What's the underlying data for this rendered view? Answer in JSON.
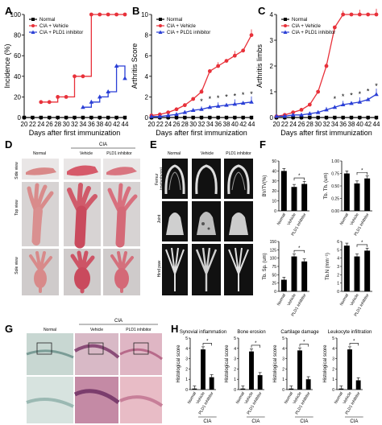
{
  "panel_labels": {
    "A": "A",
    "B": "B",
    "C": "C",
    "D": "D",
    "E": "E",
    "F": "F",
    "G": "G",
    "H": "H"
  },
  "line_charts": [
    {
      "type": "line",
      "id": "A",
      "ylabel": "Incidence (%)",
      "xlabel": "Days after first immunization",
      "ylim": [
        0,
        100
      ],
      "yticks": [
        0,
        20,
        40,
        60,
        80,
        100
      ],
      "x": [
        20,
        22,
        24,
        26,
        28,
        30,
        32,
        34,
        36,
        38,
        40,
        42,
        44
      ],
      "series": [
        {
          "name": "Normal",
          "color": "#000000",
          "marker": "square",
          "values": [
            0,
            0,
            0,
            0,
            0,
            0,
            0,
            0,
            0,
            0,
            0,
            0,
            0
          ]
        },
        {
          "name": "CIA + Vehicle",
          "color": "#e8313a",
          "marker": "circle",
          "values": [
            null,
            null,
            15,
            15,
            20,
            20,
            40,
            40,
            100,
            100,
            100,
            100,
            100
          ]
        },
        {
          "name": "CIA + PLD1 inhibitor",
          "color": "#2a3fd6",
          "marker": "triangle",
          "values": [
            null,
            null,
            null,
            null,
            null,
            null,
            null,
            10,
            15,
            20,
            25,
            50,
            38
          ]
        }
      ],
      "legend": "top-left"
    },
    {
      "type": "line",
      "id": "B",
      "ylabel": "Arthritis Score",
      "xlabel": "Days after first immunization",
      "ylim": [
        0,
        10
      ],
      "yticks": [
        0,
        2,
        4,
        6,
        8,
        10
      ],
      "x": [
        20,
        22,
        24,
        26,
        28,
        30,
        32,
        34,
        36,
        38,
        40,
        42,
        44
      ],
      "series": [
        {
          "name": "Normal",
          "color": "#000000",
          "marker": "square",
          "values": [
            0,
            0,
            0,
            0,
            0,
            0,
            0,
            0,
            0,
            0,
            0,
            0,
            0
          ]
        },
        {
          "name": "CIA + Vehicle",
          "color": "#e8313a",
          "marker": "circle",
          "values": [
            0.2,
            0.3,
            0.5,
            0.8,
            1.2,
            1.8,
            2.5,
            4.5,
            5.0,
            5.5,
            6.0,
            6.5,
            8.0
          ]
        },
        {
          "name": "CIA + PLD1 inhibitor",
          "color": "#2a3fd6",
          "marker": "triangle",
          "values": [
            0.1,
            0.1,
            0.2,
            0.3,
            0.5,
            0.7,
            0.8,
            1.0,
            1.1,
            1.2,
            1.3,
            1.4,
            1.5
          ]
        }
      ],
      "stars": [
        32,
        34,
        36,
        38,
        40,
        42,
        44
      ],
      "star_label": "*",
      "legend": "top-left"
    },
    {
      "type": "line",
      "id": "C",
      "ylabel": "Arthritis limbs",
      "xlabel": "Days after first immunization",
      "ylim": [
        0,
        4
      ],
      "yticks": [
        0,
        1,
        2,
        3,
        4
      ],
      "x": [
        20,
        22,
        24,
        26,
        28,
        30,
        32,
        34,
        36,
        38,
        40,
        42,
        44
      ],
      "series": [
        {
          "name": "Normal",
          "color": "#000000",
          "marker": "square",
          "values": [
            0,
            0,
            0,
            0,
            0,
            0,
            0,
            0,
            0,
            0,
            0,
            0,
            0
          ]
        },
        {
          "name": "CIA + Vehicle",
          "color": "#e8313a",
          "marker": "circle",
          "values": [
            0.05,
            0.1,
            0.2,
            0.3,
            0.5,
            1.0,
            2.0,
            3.5,
            4.0,
            4.0,
            4.0,
            4.0,
            4.0
          ]
        },
        {
          "name": "CIA + PLD1 inhibitor",
          "color": "#2a3fd6",
          "marker": "triangle",
          "values": [
            0.05,
            0.05,
            0.1,
            0.1,
            0.15,
            0.2,
            0.3,
            0.4,
            0.5,
            0.55,
            0.6,
            0.7,
            0.9
          ]
        }
      ],
      "stars": [
        34,
        36,
        38,
        40,
        42,
        44
      ],
      "star_label": "*",
      "legend": "top-left"
    }
  ],
  "panel_d": {
    "group_label": "CIA",
    "columns": [
      "Normal",
      "Vehicle",
      "PLD1 inhibitor"
    ],
    "rows": [
      "Side view",
      "Top view",
      "Sole view"
    ]
  },
  "panel_e": {
    "columns": [
      "Normal",
      "Vehicle",
      "PLD1 inhibitor"
    ],
    "rows": [
      "Femur\n(metaphysis)",
      "Joint",
      "Hind paw"
    ],
    "row_lines": [
      [
        "Femur",
        "(metaphysis)"
      ],
      [
        "Joint"
      ],
      [
        "Hind paw"
      ]
    ]
  },
  "bar_charts_f": [
    {
      "type": "bar",
      "ylabel": "BV/TV(%)",
      "yticks": [
        0,
        10,
        20,
        30,
        40,
        50
      ],
      "ylim": [
        0,
        50
      ],
      "categories": [
        "Normal",
        "Vehicle",
        "PLD1 inhibitor"
      ],
      "values": [
        40,
        24,
        27
      ],
      "star": "*"
    },
    {
      "type": "bar",
      "ylabel": "Tb. Th. (um)",
      "yticks": [
        0.0,
        0.25,
        0.5,
        0.75,
        1.0
      ],
      "ylim": [
        0,
        1
      ],
      "categories": [
        "Normal",
        "Vehicle",
        "PLD1 inhibitor"
      ],
      "values": [
        0.75,
        0.55,
        0.65
      ],
      "star": "*"
    },
    {
      "type": "bar",
      "ylabel": "Tb. Sp. (um)",
      "yticks": [
        0,
        25,
        50,
        75,
        100,
        125,
        150
      ],
      "ylim": [
        0,
        150
      ],
      "categories": [
        "Normal",
        "Vehicle",
        "PLD1 inhibitor"
      ],
      "values": [
        35,
        105,
        90
      ],
      "star": "*"
    },
    {
      "type": "bar",
      "ylabel": "Tb.N (mm⁻¹)",
      "yticks": [
        0,
        1,
        2,
        3,
        4,
        5,
        6
      ],
      "ylim": [
        0,
        6
      ],
      "categories": [
        "Normal",
        "Vehicle",
        "PLD1 inhibitor"
      ],
      "values": [
        5.5,
        4.2,
        4.9
      ],
      "star": "*"
    }
  ],
  "panel_g": {
    "group_label": "CIA",
    "columns": [
      "Normal",
      "Vehicle",
      "PLD1 inhibitor"
    ]
  },
  "bar_charts_h": [
    {
      "type": "bar",
      "title": "Synovial inflammation",
      "ylabel": "Histological score",
      "ylim": [
        0,
        5
      ],
      "yticks": [
        0,
        1,
        2,
        3,
        4,
        5
      ],
      "categories": [
        "Normal",
        "Vehicle",
        "PLD1 inhibitor"
      ],
      "values": [
        0.1,
        3.9,
        1.2
      ],
      "star": "*",
      "group": "CIA"
    },
    {
      "type": "bar",
      "title": "Bone erosion",
      "ylabel": "Histological score",
      "ylim": [
        0,
        5
      ],
      "yticks": [
        0,
        1,
        2,
        3,
        4,
        5
      ],
      "categories": [
        "Normal",
        "Vehicle",
        "PLD1 inhibitor"
      ],
      "values": [
        0.1,
        3.7,
        1.4
      ],
      "star": "*",
      "group": "CIA"
    },
    {
      "type": "bar",
      "title": "Cartilage damage",
      "ylabel": "Histological score",
      "ylim": [
        0,
        5
      ],
      "yticks": [
        0,
        1,
        2,
        3,
        4,
        5
      ],
      "categories": [
        "Normal",
        "Vehicle",
        "PLD1 inhibitor"
      ],
      "values": [
        0.1,
        3.8,
        1.0
      ],
      "star": "*",
      "group": "CIA"
    },
    {
      "type": "bar",
      "title": "Leukocyte infiltration",
      "ylabel": "Histological score",
      "ylim": [
        0,
        5
      ],
      "yticks": [
        0,
        1,
        2,
        3,
        4,
        5
      ],
      "categories": [
        "Normal",
        "Vehicle",
        "PLD1 inhibitor"
      ],
      "values": [
        0.1,
        3.9,
        0.9
      ],
      "star": "*",
      "group": "CIA"
    }
  ]
}
